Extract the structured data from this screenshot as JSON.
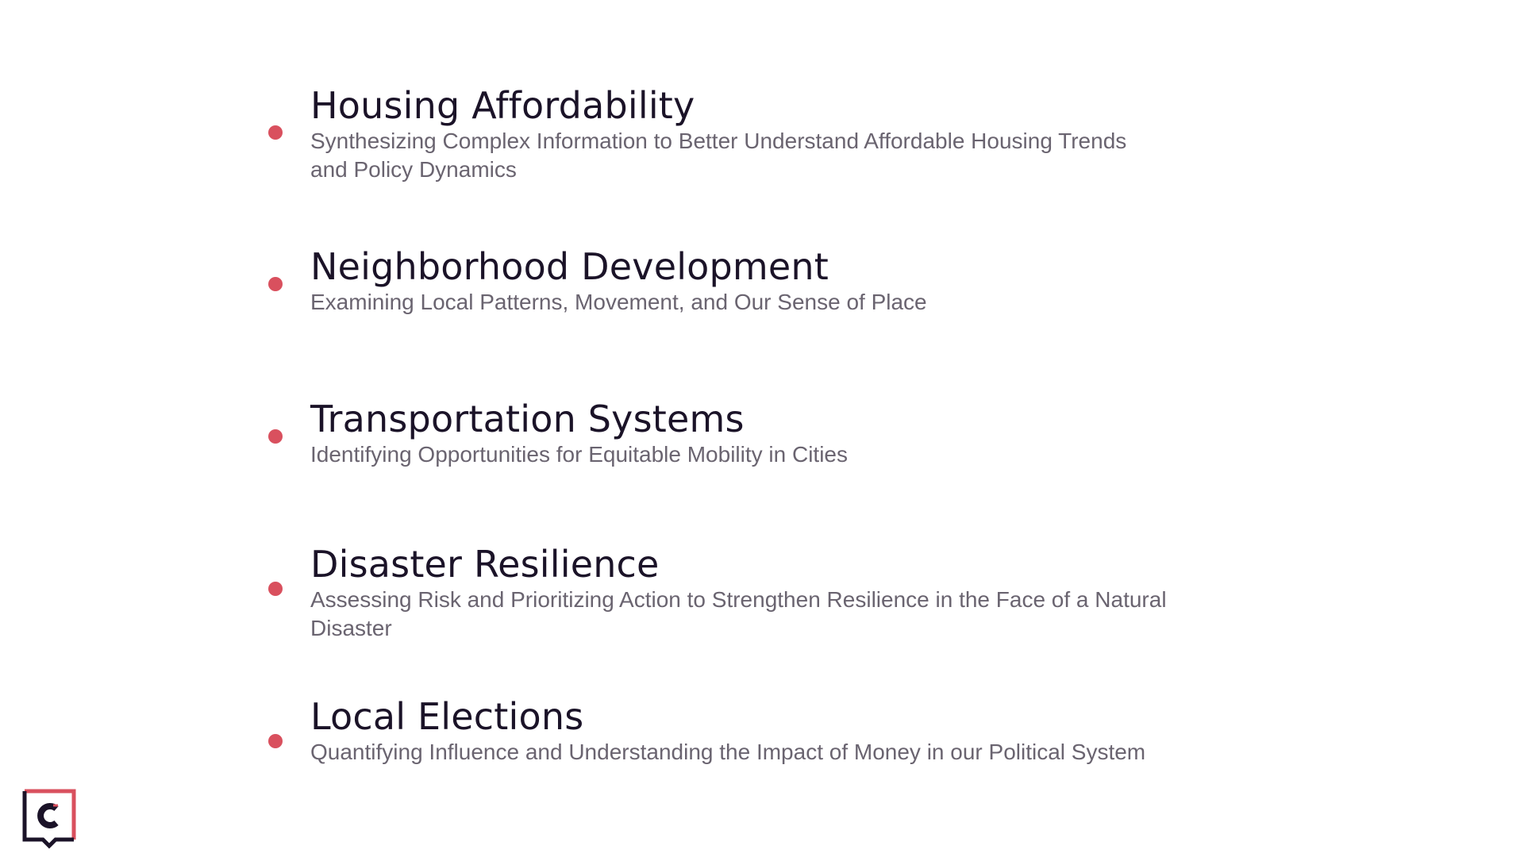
{
  "topics": [
    {
      "title": "Housing Affordability",
      "subtitle": "Synthesizing Complex Information to Better Understand Affordable Housing Trends and Policy Dynamics"
    },
    {
      "title": "Neighborhood Development",
      "subtitle": "Examining Local Patterns, Movement, and Our Sense of Place"
    },
    {
      "title": "Transportation Systems",
      "subtitle": "Identifying Opportunities for Equitable Mobility in Cities"
    },
    {
      "title": "Disaster Resilience",
      "subtitle": "Assessing Risk and Prioritizing Action to Strengthen Resilience in the Face of a Natural Disaster"
    },
    {
      "title": "Local Elections",
      "subtitle": "Quantifying Influence and Understanding the Impact of Money in our Political System"
    }
  ],
  "colors": {
    "bullet": "#d9505e",
    "title": "#1b1328",
    "subtitle": "#6a6470",
    "logo_frame": "#d9505e",
    "logo_mark": "#1b1328"
  },
  "logo": {
    "icon": "brand-logo-icon"
  }
}
